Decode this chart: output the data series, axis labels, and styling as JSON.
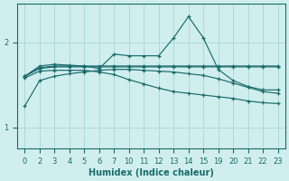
{
  "xlabel": "Humidex (Indice chaleur)",
  "ylabel": "",
  "bg_color": "#d0eeee",
  "line_color": "#1a6b6b",
  "grid_color": "#aadada",
  "xtick_labels": [
    "0",
    "2",
    "3",
    "4",
    "5",
    "6",
    "7",
    "10",
    "11",
    "12",
    "13",
    "14",
    "15",
    "19",
    "20",
    "21",
    "22",
    "23"
  ],
  "yticks": [
    1,
    2
  ],
  "ylim": [
    0.75,
    2.45
  ],
  "lines": [
    {
      "xi": [
        0,
        1,
        2,
        3,
        4,
        5,
        6,
        7,
        8,
        9,
        10,
        11,
        12,
        13,
        14,
        15,
        16,
        17
      ],
      "y": [
        1.6,
        1.72,
        1.74,
        1.73,
        1.72,
        1.69,
        1.86,
        1.84,
        1.84,
        1.84,
        2.05,
        2.3,
        2.05,
        1.68,
        1.55,
        1.48,
        1.44,
        1.44
      ]
    },
    {
      "xi": [
        0,
        1,
        2,
        3,
        4,
        5,
        6,
        7,
        8,
        9,
        10,
        11,
        12,
        13,
        14,
        15,
        16,
        17
      ],
      "y": [
        1.6,
        1.7,
        1.72,
        1.72,
        1.72,
        1.72,
        1.72,
        1.72,
        1.72,
        1.72,
        1.72,
        1.72,
        1.72,
        1.72,
        1.72,
        1.72,
        1.72,
        1.72
      ]
    },
    {
      "xi": [
        0,
        1,
        2,
        3,
        4,
        5,
        6,
        7,
        8,
        9,
        10,
        11,
        12,
        13,
        14,
        15,
        16,
        17
      ],
      "y": [
        1.6,
        1.69,
        1.71,
        1.71,
        1.71,
        1.71,
        1.71,
        1.71,
        1.71,
        1.71,
        1.71,
        1.71,
        1.71,
        1.71,
        1.71,
        1.71,
        1.71,
        1.71
      ]
    },
    {
      "xi": [
        0,
        1,
        2,
        3,
        4,
        5,
        6,
        7,
        8,
        9,
        10,
        11,
        12,
        13,
        14,
        15,
        16,
        17
      ],
      "y": [
        1.58,
        1.66,
        1.67,
        1.67,
        1.67,
        1.65,
        1.62,
        1.56,
        1.51,
        1.46,
        1.42,
        1.4,
        1.38,
        1.36,
        1.34,
        1.31,
        1.29,
        1.28
      ]
    },
    {
      "xi": [
        0,
        1,
        2,
        3,
        4,
        5,
        6,
        7,
        8,
        9,
        10,
        11,
        12,
        13,
        14,
        15,
        16,
        17
      ],
      "y": [
        1.25,
        1.55,
        1.6,
        1.63,
        1.65,
        1.67,
        1.68,
        1.68,
        1.67,
        1.66,
        1.65,
        1.63,
        1.61,
        1.57,
        1.52,
        1.47,
        1.42,
        1.4
      ]
    }
  ]
}
